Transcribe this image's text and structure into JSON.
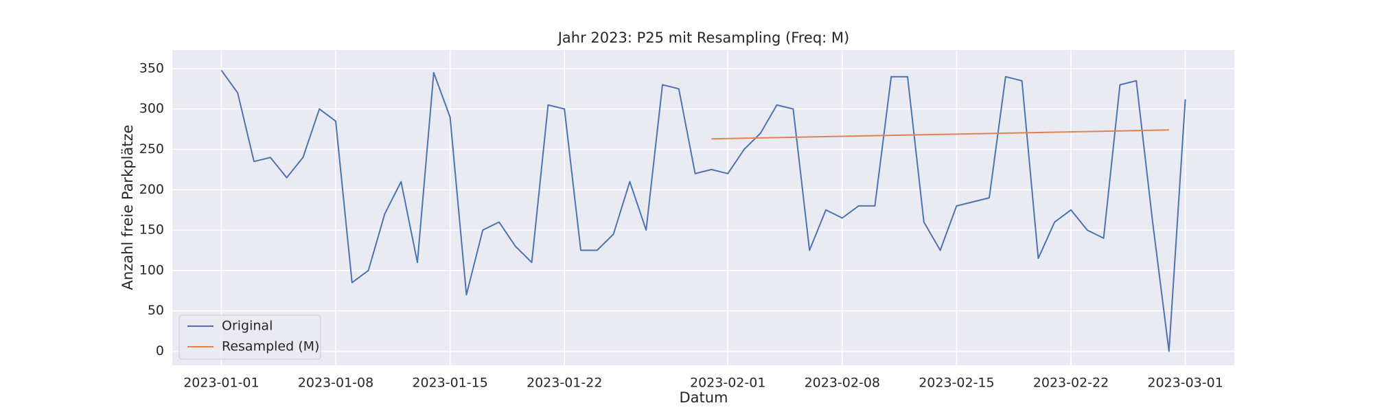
{
  "chart_data": {
    "type": "line",
    "title": "Jahr 2023: P25 mit Resampling (Freq: M)",
    "x_label": "Datum",
    "y_label": "Anzahl freie Parkplätze",
    "xlim": [
      "2022-12-29",
      "2023-03-04"
    ],
    "xticks": [
      "2023-01-01",
      "2023-01-08",
      "2023-01-15",
      "2023-01-22",
      "2023-02-01",
      "2023-02-08",
      "2023-02-15",
      "2023-02-22",
      "2023-03-01"
    ],
    "ylim": [
      -17.4,
      372.9
    ],
    "yticks": [
      0,
      50,
      100,
      150,
      200,
      250,
      300,
      350
    ],
    "grid": true,
    "legend": "lower left",
    "series": [
      {
        "name": "Original",
        "color": "#4c72b0",
        "x": [
          "2023-01-01",
          "2023-01-02",
          "2023-01-03",
          "2023-01-04",
          "2023-01-05",
          "2023-01-06",
          "2023-01-07",
          "2023-01-08",
          "2023-01-09",
          "2023-01-10",
          "2023-01-11",
          "2023-01-12",
          "2023-01-13",
          "2023-01-14",
          "2023-01-15",
          "2023-01-16",
          "2023-01-17",
          "2023-01-18",
          "2023-01-19",
          "2023-01-20",
          "2023-01-21",
          "2023-01-22",
          "2023-01-23",
          "2023-01-24",
          "2023-01-25",
          "2023-01-26",
          "2023-01-27",
          "2023-01-28",
          "2023-01-29",
          "2023-01-30",
          "2023-01-31",
          "2023-02-01",
          "2023-02-02",
          "2023-02-03",
          "2023-02-04",
          "2023-02-05",
          "2023-02-06",
          "2023-02-07",
          "2023-02-08",
          "2023-02-09",
          "2023-02-10",
          "2023-02-11",
          "2023-02-12",
          "2023-02-13",
          "2023-02-14",
          "2023-02-15",
          "2023-02-16",
          "2023-02-17",
          "2023-02-18",
          "2023-02-19",
          "2023-02-20",
          "2023-02-21",
          "2023-02-22",
          "2023-02-23",
          "2023-02-24",
          "2023-02-25",
          "2023-02-26",
          "2023-02-27",
          "2023-02-28",
          "2023-03-01"
        ],
        "values": [
          348,
          320,
          235,
          240,
          215,
          240,
          300,
          285,
          85,
          100,
          170,
          210,
          110,
          345,
          290,
          70,
          150,
          160,
          130,
          110,
          305,
          300,
          125,
          125,
          145,
          210,
          150,
          330,
          325,
          220,
          225,
          220,
          250,
          270,
          305,
          300,
          125,
          175,
          165,
          180,
          180,
          340,
          340,
          160,
          125,
          180,
          185,
          190,
          340,
          335,
          115,
          160,
          175,
          150,
          140,
          330,
          335,
          160,
          0,
          312
        ]
      },
      {
        "name": "Resampled (M)",
        "color": "#dd8452",
        "x": [
          "2023-01-31",
          "2023-02-28"
        ],
        "values": [
          263,
          274
        ]
      }
    ]
  }
}
